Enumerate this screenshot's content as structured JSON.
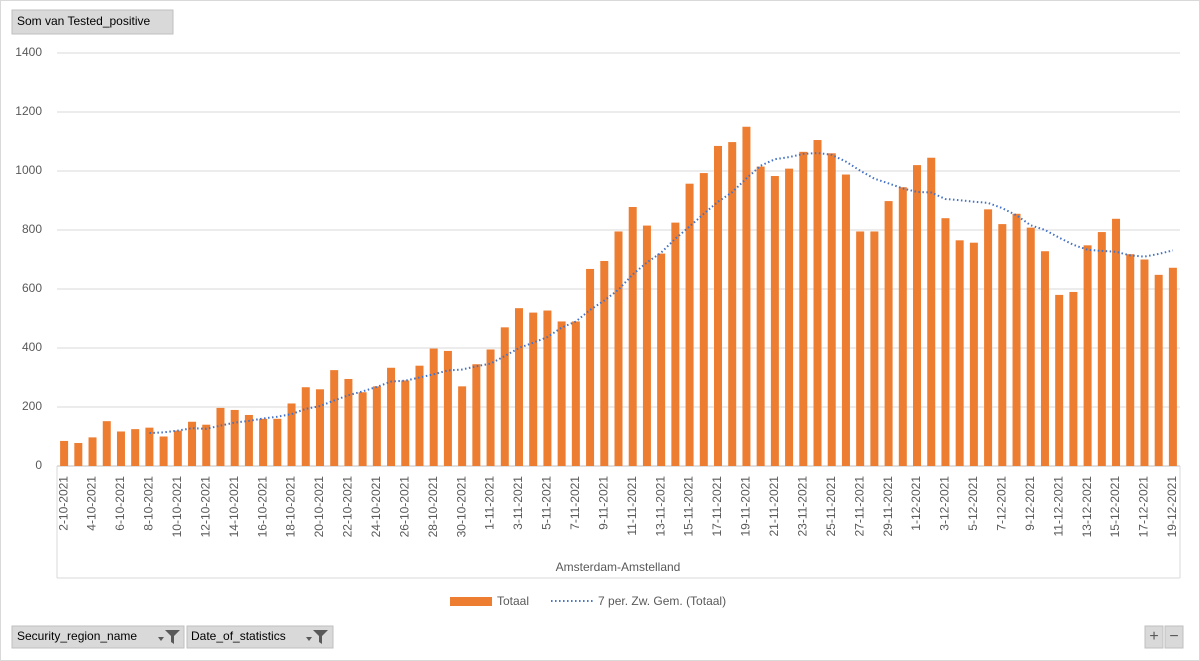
{
  "chart_data": {
    "type": "bar",
    "field_button": "Som van Tested_positive",
    "group_label": "Amsterdam-Amstelland",
    "filters": [
      "Security_region_name",
      "Date_of_statistics"
    ],
    "zoom_buttons": [
      "+",
      "−"
    ],
    "categories": [
      "2-10-2021",
      null,
      "4-10-2021",
      null,
      "6-10-2021",
      null,
      "8-10-2021",
      null,
      "10-10-2021",
      null,
      "12-10-2021",
      null,
      "14-10-2021",
      null,
      "16-10-2021",
      null,
      "18-10-2021",
      null,
      "20-10-2021",
      null,
      "22-10-2021",
      null,
      "24-10-2021",
      null,
      "26-10-2021",
      null,
      "28-10-2021",
      null,
      "30-10-2021",
      null,
      "1-11-2021",
      null,
      "3-11-2021",
      null,
      "5-11-2021",
      null,
      "7-11-2021",
      null,
      "9-11-2021",
      null,
      "11-11-2021",
      null,
      "13-11-2021",
      null,
      "15-11-2021",
      null,
      "17-11-2021",
      null,
      "19-11-2021",
      null,
      "21-11-2021",
      null,
      "23-11-2021",
      null,
      "25-11-2021",
      null,
      "27-11-2021",
      null,
      "29-11-2021",
      null,
      "1-12-2021",
      null,
      "3-12-2021",
      null,
      "5-12-2021",
      null,
      "7-12-2021",
      null,
      "9-12-2021",
      null,
      "11-12-2021",
      null,
      "13-12-2021",
      null,
      "15-12-2021",
      null,
      "17-12-2021",
      null,
      "19-12-2021"
    ],
    "series": [
      {
        "name": "Totaal",
        "color": "#ed7d31",
        "values": [
          85,
          78,
          97,
          152,
          117,
          125,
          130,
          100,
          120,
          150,
          140,
          197,
          190,
          173,
          160,
          160,
          212,
          267,
          260,
          325,
          295,
          250,
          270,
          333,
          290,
          340,
          398,
          390,
          270,
          345,
          395,
          470,
          535,
          520,
          527,
          490,
          490,
          668,
          695,
          795,
          878,
          815,
          720,
          825,
          957,
          993,
          1085,
          1098,
          1150,
          1015,
          983,
          1008,
          1065,
          1105,
          1060,
          988,
          795,
          795,
          898,
          945,
          1020,
          1045,
          840,
          765,
          757,
          870,
          820,
          855,
          808,
          728,
          580,
          590,
          748,
          793,
          838,
          718,
          700,
          648,
          672
        ]
      },
      {
        "name": "7 per. Zw. Gem. (Totaal)",
        "type": "line",
        "color": "#4472c4",
        "values": [
          null,
          null,
          null,
          null,
          null,
          null,
          112,
          114,
          120,
          128,
          126,
          137,
          147,
          153,
          161,
          167,
          176,
          194,
          203,
          222,
          240,
          253,
          268,
          286,
          289,
          300,
          311,
          324,
          327,
          338,
          347,
          373,
          400,
          418,
          437,
          469,
          490,
          529,
          561,
          598,
          649,
          690,
          723,
          771,
          812,
          855,
          896,
          928,
          975,
          1018,
          1040,
          1047,
          1058,
          1061,
          1055,
          1032,
          1001,
          974,
          958,
          941,
          929,
          927,
          905,
          901,
          896,
          892,
          874,
          850,
          816,
          800,
          774,
          750,
          733,
          729,
          726,
          714,
          710,
          719,
          731
        ]
      }
    ],
    "ylim": [
      0,
      1400
    ],
    "yticks": [
      0,
      200,
      400,
      600,
      800,
      1000,
      1200,
      1400
    ],
    "grid": true,
    "legend": "bottom"
  }
}
